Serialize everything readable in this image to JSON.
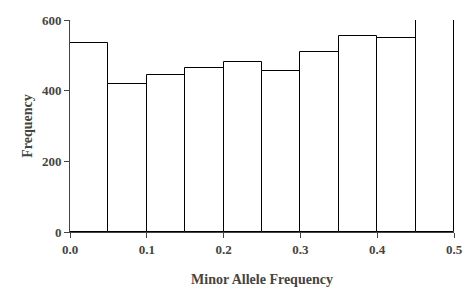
{
  "chart_data": {
    "type": "histogram",
    "bins": [
      0.0,
      0.05,
      0.1,
      0.15,
      0.2,
      0.25,
      0.3,
      0.35,
      0.4,
      0.45,
      0.5
    ],
    "values": [
      535,
      420,
      445,
      465,
      480,
      455,
      510,
      555,
      550,
      600
    ],
    "color": "#ffffff",
    "xlabel": "Minor Allele Frequency",
    "ylabel": "Frequency",
    "xlim": [
      0.0,
      0.5
    ],
    "ylim": [
      0,
      600
    ],
    "xticks": [
      {
        "value": 0.0,
        "label": "0.0"
      },
      0.1,
      0.2,
      0.3,
      0.4,
      0.5
    ],
    "yticks": [
      0,
      200,
      400,
      600
    ],
    "grid": false
  }
}
